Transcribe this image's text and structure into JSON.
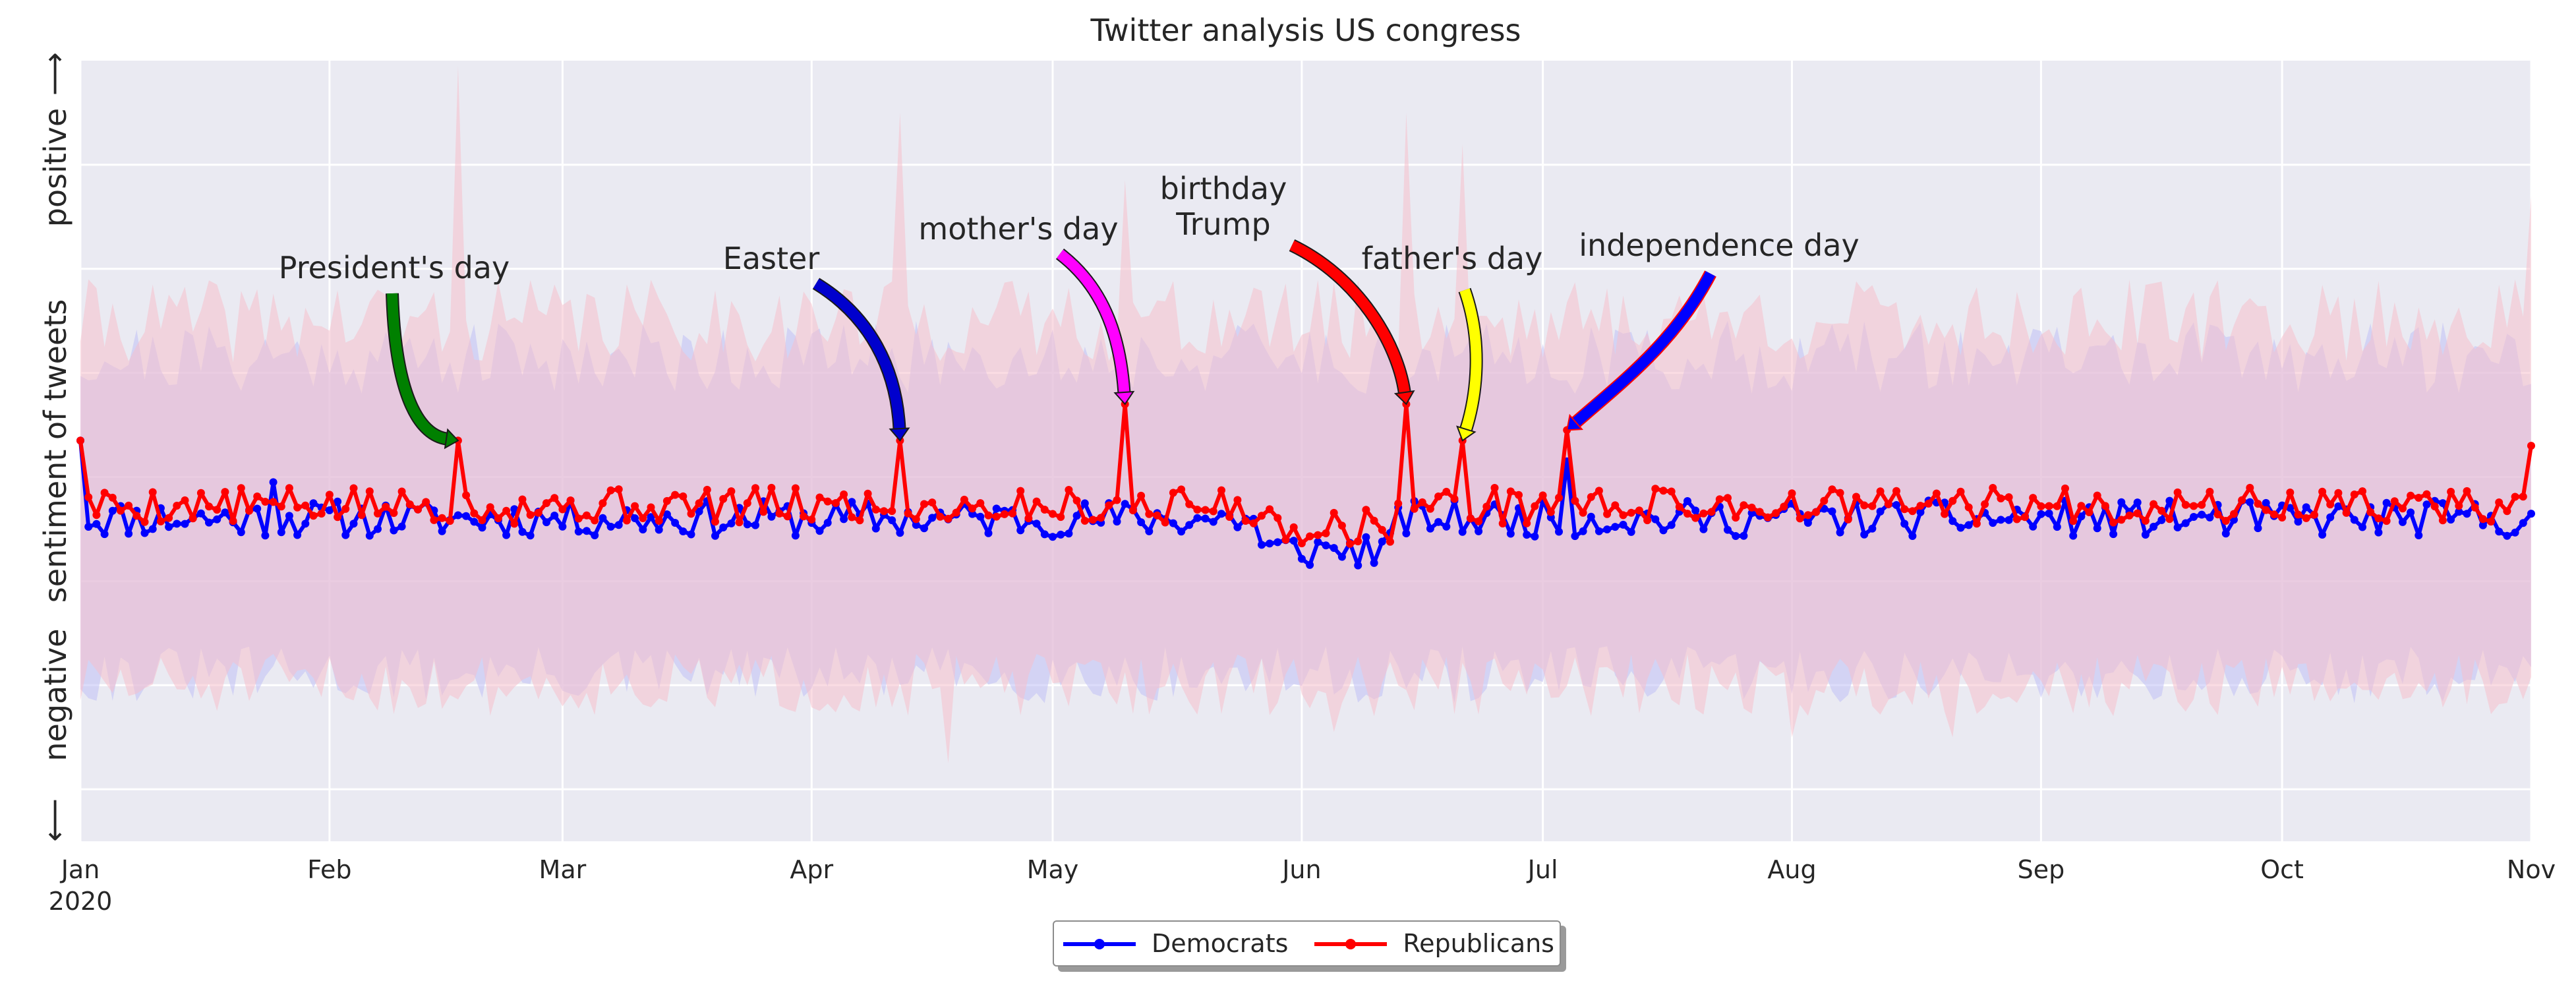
{
  "chart_data": {
    "type": "line",
    "title": "Twitter analysis US congress",
    "ylabel": "sentiment of tweets",
    "ylabel_positive": "positive",
    "ylabel_negative": "negative",
    "ylabel_arrow_up": "⟶",
    "ylabel_arrow_down": "⟵",
    "xlabel": "",
    "x_tick_labels": [
      "Jan",
      "Feb",
      "Mar",
      "Apr",
      "May",
      "Jun",
      "Jul",
      "Aug",
      "Sep",
      "Oct",
      "Nov"
    ],
    "x_tick_dates": [
      "2020-01-01",
      "2020-02-01",
      "2020-03-01",
      "2020-04-01",
      "2020-05-01",
      "2020-06-01",
      "2020-07-01",
      "2020-08-01",
      "2020-09-01",
      "2020-10-01",
      "2020-11-01"
    ],
    "x_year_label": "2020",
    "xlim": [
      "2020-01-01",
      "2020-11-01"
    ],
    "ylim": [
      -0.5,
      1.0
    ],
    "y_gridlines": [
      -0.4,
      -0.2,
      0.0,
      0.2,
      0.4,
      0.6,
      0.8
    ],
    "grid": true,
    "legend_position": "lower-center",
    "colors": {
      "background": "#eaeaf2",
      "grid": "#ffffff",
      "democrats": "#0000ff",
      "republicans": "#ff0000",
      "dem_band": "#bfbff5",
      "rep_band": "#f5c0cc"
    },
    "series": [
      {
        "name": "Democrats",
        "color": "#0000ff",
        "mean": {
          "base": 0.12,
          "noise": 0.035,
          "seed": 11,
          "dip_window": [
            "2020-05-27",
            "2020-06-12"
          ],
          "dip": -0.06,
          "peaks": [
            [
              "2020-01-01",
              0.27
            ],
            [
              "2020-01-25",
              0.19
            ],
            [
              "2020-07-04",
              0.23
            ]
          ]
        },
        "band": {
          "upper": {
            "base": 0.43,
            "noise": 0.07,
            "seed": 21
          },
          "lower": {
            "base": -0.18,
            "noise": 0.055,
            "seed": 31
          }
        }
      },
      {
        "name": "Republicans",
        "color": "#ff0000",
        "mean": {
          "base": 0.145,
          "noise": 0.035,
          "seed": 5,
          "dip_window": [
            "2020-05-27",
            "2020-06-12"
          ],
          "dip": -0.04,
          "peaks": [
            [
              "2020-01-01",
              0.27
            ],
            [
              "2020-02-17",
              0.27
            ],
            [
              "2020-04-12",
              0.27
            ],
            [
              "2020-05-10",
              0.34
            ],
            [
              "2020-06-14",
              0.34
            ],
            [
              "2020-06-21",
              0.27
            ],
            [
              "2020-07-04",
              0.29
            ],
            [
              "2020-11-01",
              0.26
            ]
          ]
        },
        "band": {
          "upper": {
            "base": 0.5,
            "noise": 0.08,
            "seed": 41,
            "spikes": [
              [
                "2020-02-17",
                0.99
              ],
              [
                "2020-04-12",
                0.9
              ],
              [
                "2020-06-14",
                0.9
              ],
              [
                "2020-06-21",
                0.84
              ],
              [
                "2020-05-10",
                0.77
              ],
              [
                "2020-11-01",
                0.74
              ]
            ]
          },
          "lower": {
            "base": -0.2,
            "noise": 0.06,
            "seed": 51,
            "dips": [
              [
                "2020-04-18",
                -0.35
              ],
              [
                "2020-06-05",
                -0.29
              ],
              [
                "2020-08-01",
                -0.3
              ],
              [
                "2020-08-21",
                -0.3
              ]
            ]
          }
        }
      }
    ],
    "annotations": [
      {
        "text": "President's day",
        "target_date": "2020-02-17",
        "target_y": 0.27,
        "color": "#008000"
      },
      {
        "text": "Easter",
        "target_date": "2020-04-12",
        "target_y": 0.27,
        "color": "#0000cd"
      },
      {
        "text": "mother's day",
        "target_date": "2020-05-10",
        "target_y": 0.34,
        "color": "#ff00ff"
      },
      {
        "text_lines": [
          "birthday",
          "Trump"
        ],
        "target_date": "2020-06-14",
        "target_y": 0.34,
        "color": "#ff0000"
      },
      {
        "text": "father's day",
        "target_date": "2020-06-21",
        "target_y": 0.27,
        "color": "#ffff00"
      },
      {
        "text": "independence day",
        "target_date": "2020-07-04",
        "target_y": 0.29,
        "color": "#0000ff",
        "edge_color": "#ff0000"
      }
    ]
  }
}
